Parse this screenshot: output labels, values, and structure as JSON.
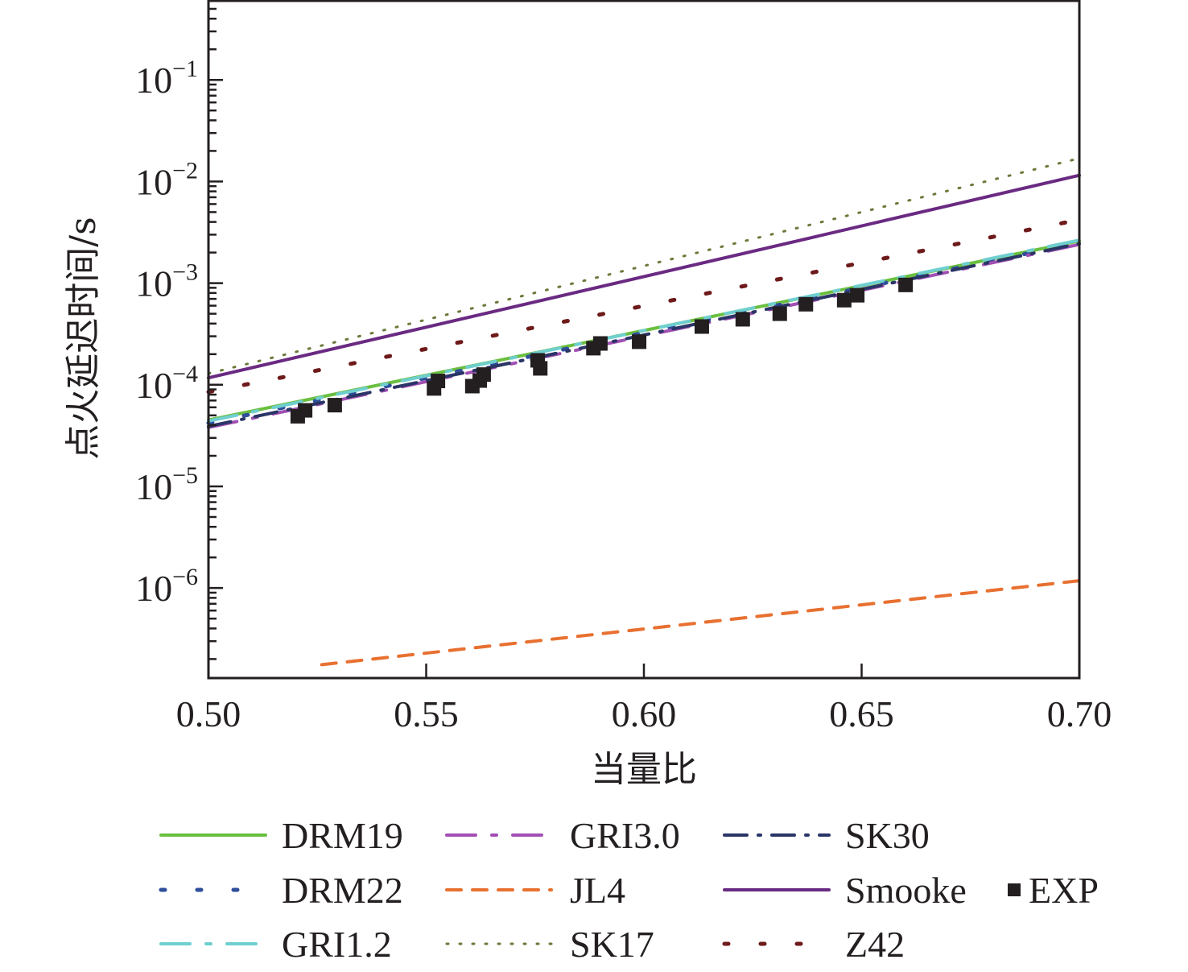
{
  "chart_data": {
    "type": "line",
    "title": "",
    "xlabel": "当量比",
    "ylabel": "点火延迟时间/s",
    "xlim": [
      0.5,
      0.7
    ],
    "ylim": [
      1.3e-07,
      0.6
    ],
    "yscale": "log",
    "grid": false,
    "x_ticks": [
      {
        "value": 0.5,
        "label": "0.50"
      },
      {
        "value": 0.55,
        "label": "0.55"
      },
      {
        "value": 0.6,
        "label": "0.60"
      },
      {
        "value": 0.65,
        "label": "0.65"
      },
      {
        "value": 0.7,
        "label": "0.70"
      }
    ],
    "y_ticks": [
      {
        "value": 0.1,
        "base": "10",
        "exp": "−1"
      },
      {
        "value": 0.01,
        "base": "10",
        "exp": "−2"
      },
      {
        "value": 0.001,
        "base": "10",
        "exp": "−3"
      },
      {
        "value": 0.0001,
        "base": "10",
        "exp": "−4"
      },
      {
        "value": 1e-05,
        "base": "10",
        "exp": "−5"
      },
      {
        "value": 1e-06,
        "base": "10",
        "exp": "−6"
      }
    ],
    "legend_position": "bottom",
    "series": [
      {
        "name": "DRM19",
        "color": "#6abf3f",
        "dash": "solid",
        "x": [
          0.5,
          0.7
        ],
        "y": [
          4.5e-05,
          0.0026
        ]
      },
      {
        "name": "DRM22",
        "color": "#2f4f9b",
        "dash": "dash-wide",
        "x": [
          0.5,
          0.7
        ],
        "y": [
          4.2e-05,
          0.0025
        ]
      },
      {
        "name": "GRI1.2",
        "color": "#6fcfcf",
        "dash": "dash-dot-dot",
        "x": [
          0.5,
          0.7
        ],
        "y": [
          4.4e-05,
          0.00265
        ]
      },
      {
        "name": "GRI3.0",
        "color": "#a14fb3",
        "dash": "dash-dot-dot",
        "x": [
          0.5,
          0.7
        ],
        "y": [
          3.8e-05,
          0.0024
        ]
      },
      {
        "name": "JL4",
        "color": "#e87030",
        "dash": "dashed",
        "x": [
          0.526,
          0.7
        ],
        "y": [
          1.76e-07,
          1.18e-06
        ]
      },
      {
        "name": "SK17",
        "color": "#6b7a3a",
        "dash": "dotted",
        "x": [
          0.5,
          0.7
        ],
        "y": [
          0.000129,
          0.0169
        ]
      },
      {
        "name": "SK30",
        "color": "#2a3566",
        "dash": "dash-dot",
        "x": [
          0.5,
          0.7
        ],
        "y": [
          3.9e-05,
          0.00245
        ]
      },
      {
        "name": "Smooke",
        "color": "#6a2a82",
        "dash": "solid",
        "x": [
          0.5,
          0.7
        ],
        "y": [
          0.000117,
          0.0115
        ]
      },
      {
        "name": "Z42",
        "color": "#6e1a1a",
        "dash": "dash-wide",
        "x": [
          0.5,
          0.7
        ],
        "y": [
          8.5e-05,
          0.0042
        ]
      }
    ],
    "exp": {
      "name": "EXP",
      "color": "#231f20",
      "marker": "square",
      "x": [
        0.5205,
        0.5222,
        0.529,
        0.5518,
        0.5527,
        0.5606,
        0.5623,
        0.5632,
        0.5756,
        0.5762,
        0.5884,
        0.59,
        0.5989,
        0.6133,
        0.6227,
        0.6312,
        0.6372,
        0.646,
        0.649,
        0.6601
      ],
      "y": [
        4.9e-05,
        5.6e-05,
        6.3e-05,
        9.2e-05,
        0.000109,
        9.7e-05,
        0.00011,
        0.000126,
        0.000174,
        0.000145,
        0.000229,
        0.000255,
        0.000265,
        0.000374,
        0.000441,
        0.0005,
        0.00062,
        0.00068,
        0.00076,
        0.00096
      ]
    },
    "legend": [
      {
        "name": "DRM19",
        "series": 0
      },
      {
        "name": "GRI3.0",
        "series": 3
      },
      {
        "name": "SK30",
        "series": 6
      },
      {
        "name": "DRM22",
        "series": 1
      },
      {
        "name": "JL4",
        "series": 4
      },
      {
        "name": "Smooke",
        "series": 7
      },
      {
        "name": "EXP",
        "series": "exp"
      },
      {
        "name": "GRI1.2",
        "series": 2
      },
      {
        "name": "SK17",
        "series": 5
      },
      {
        "name": "Z42",
        "series": 8
      }
    ]
  }
}
